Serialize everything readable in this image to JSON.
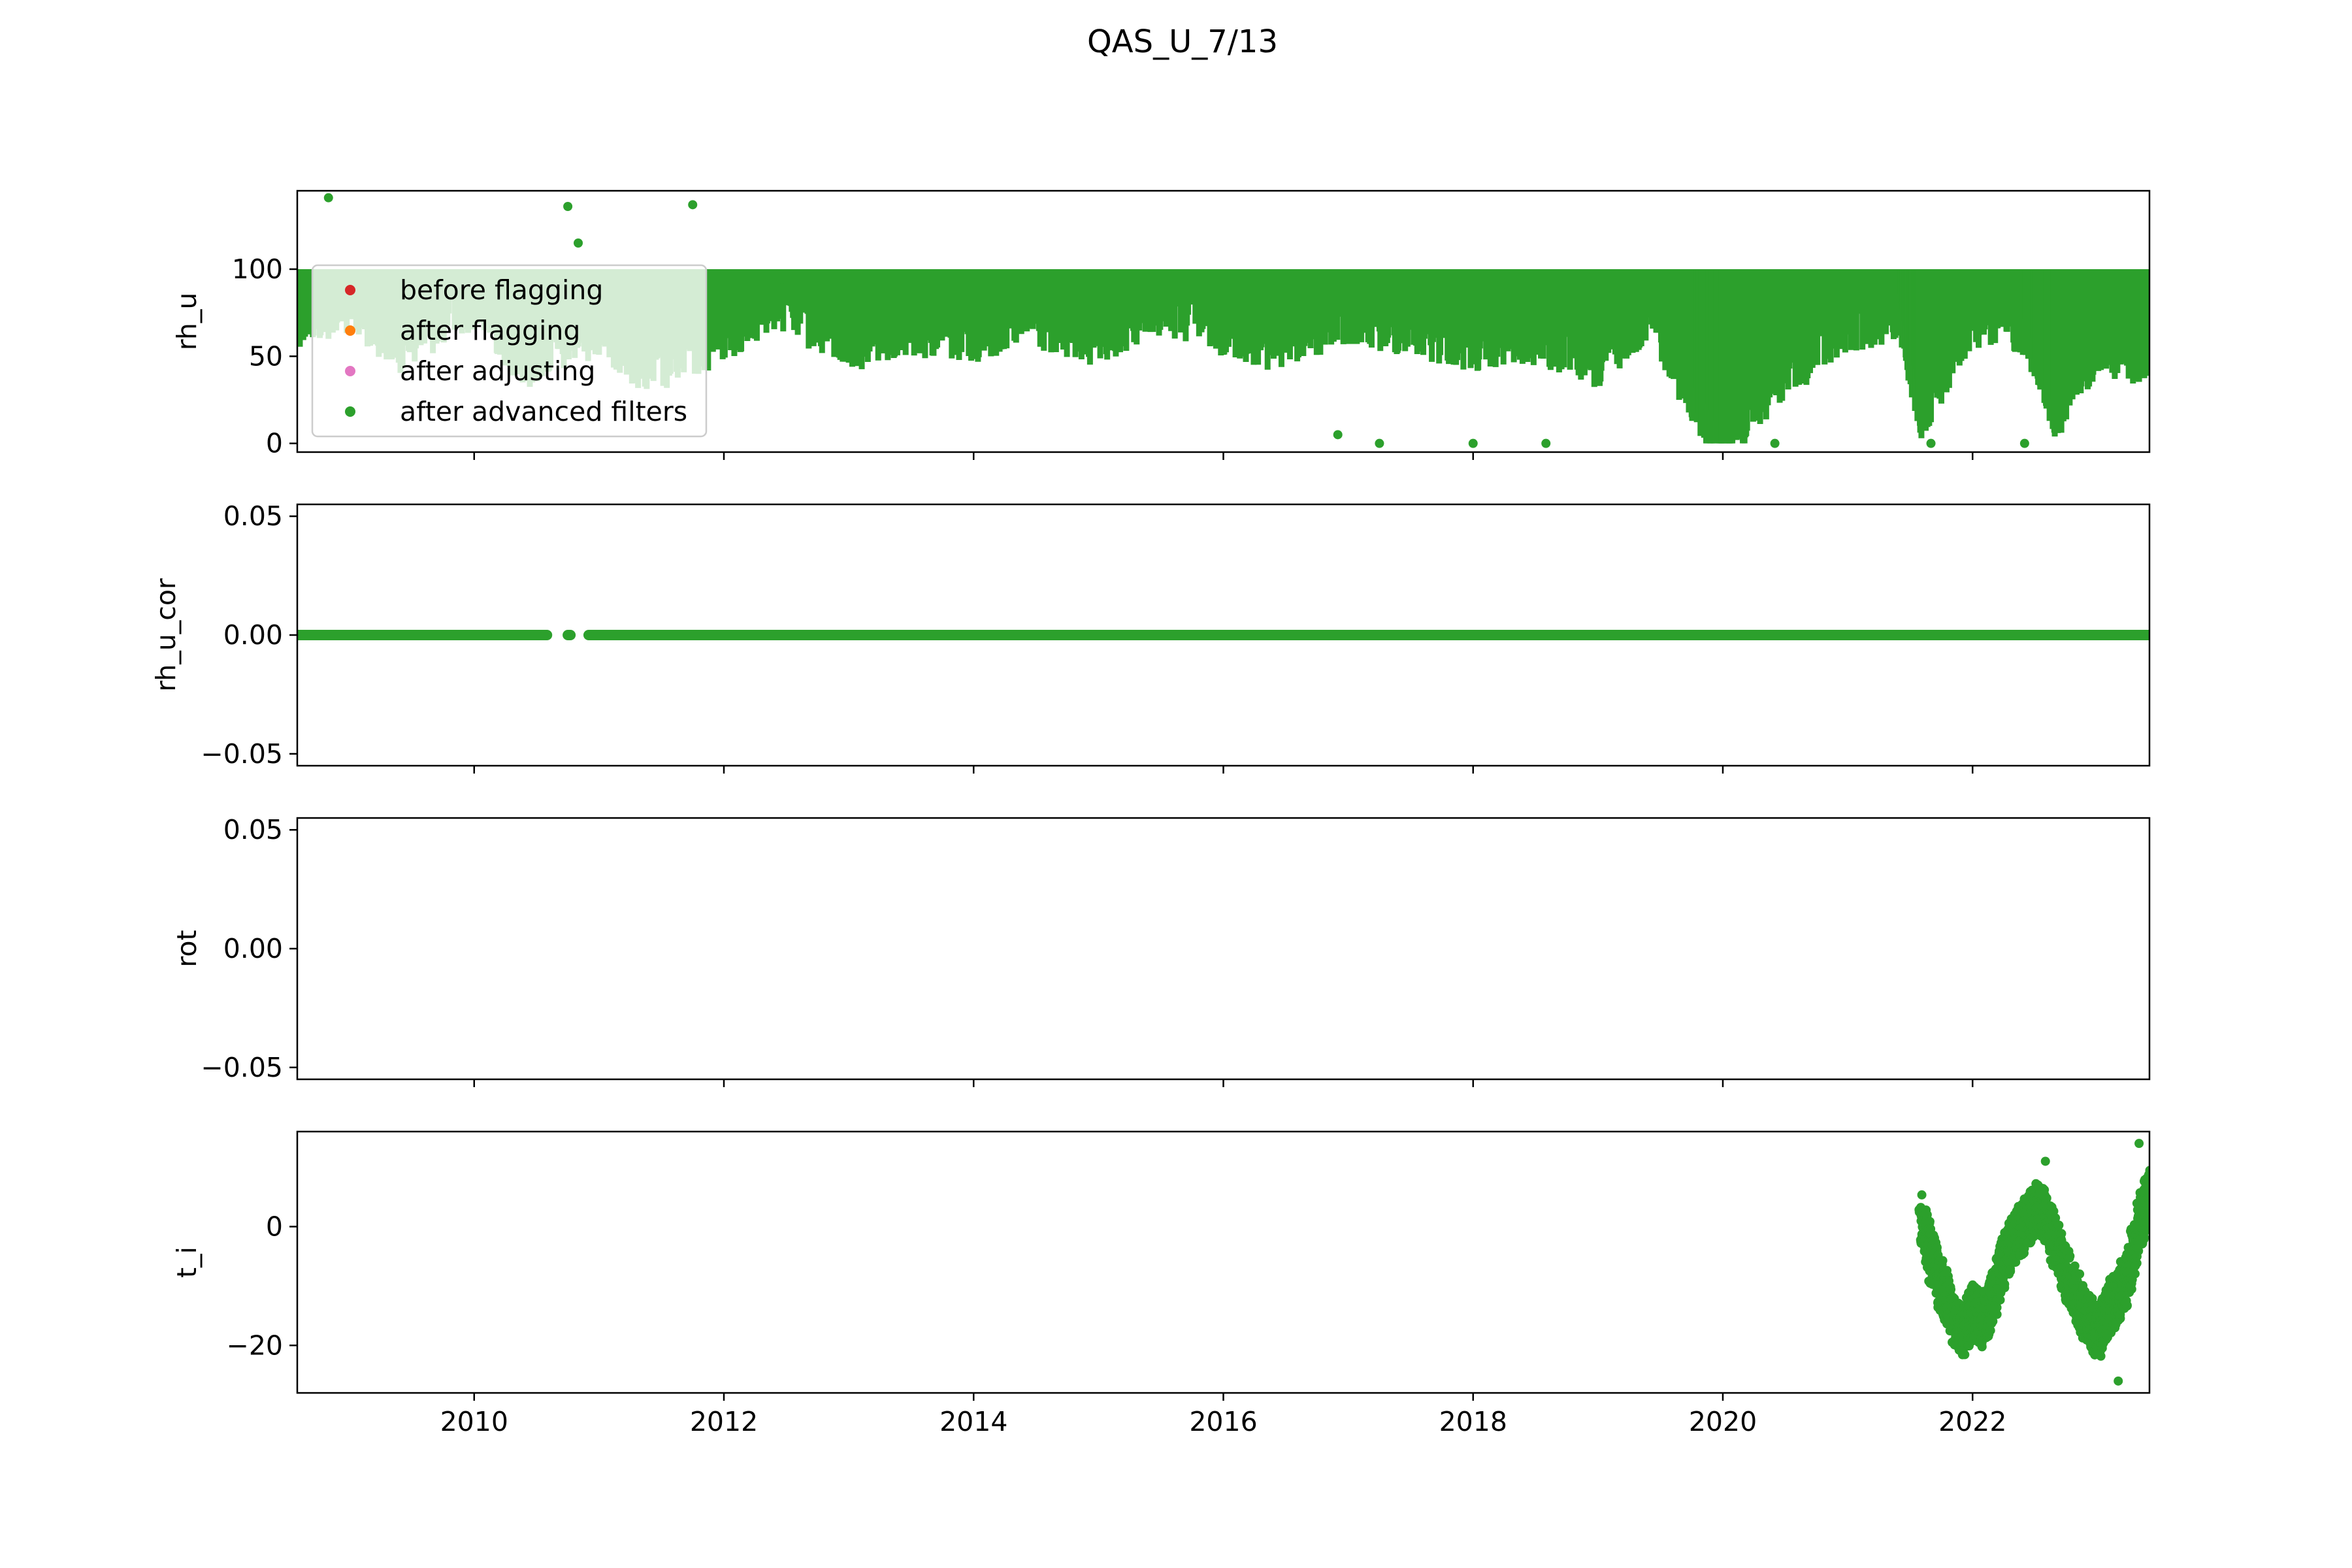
{
  "title": "QAS_U_7/13",
  "colors": {
    "before_flagging": "#d62728",
    "after_flagging": "#ff7f0e",
    "after_adjusting": "#e377c2",
    "after_advanced_filters": "#2ca02c"
  },
  "legend": {
    "placement": "upper-left of first panel",
    "entries": [
      "before flagging",
      "after flagging",
      "after adjusting",
      "after advanced filters"
    ]
  },
  "chart_data": {
    "type": "scatter",
    "title": "QAS_U_7/13",
    "x_axis": {
      "range": [
        "2008-08",
        "2023-06"
      ],
      "ticks": [
        "2010",
        "2012",
        "2014",
        "2016",
        "2018",
        "2020",
        "2022"
      ],
      "shared": true
    },
    "panels": [
      {
        "ylabel": "rh_u",
        "ylim": [
          -5,
          145
        ],
        "yticks": [
          "0",
          "50",
          "100"
        ],
        "ytick_values": [
          0,
          50,
          100
        ],
        "series": [
          {
            "name": "after advanced filters",
            "style": "dense band",
            "points": [
              [
                "2008-08",
                85
              ],
              [
                "2009-01",
                92
              ],
              [
                "2009-06",
                70
              ],
              [
                "2010-01",
                95
              ],
              [
                "2010-06",
                60
              ],
              [
                "2011-01",
                80
              ],
              [
                "2011-06",
                55
              ],
              [
                "2012-01",
                75
              ],
              [
                "2012-06",
                95
              ],
              [
                "2013-01",
                70
              ],
              [
                "2013-06",
                80
              ],
              [
                "2014-01",
                75
              ],
              [
                "2014-06",
                85
              ],
              [
                "2015-01",
                70
              ],
              [
                "2015-06",
                92
              ],
              [
                "2016-01",
                80
              ],
              [
                "2016-06",
                70
              ],
              [
                "2017-01",
                85
              ],
              [
                "2017-06",
                80
              ],
              [
                "2018-01",
                70
              ],
              [
                "2018-06",
                75
              ],
              [
                "2019-01",
                60
              ],
              [
                "2019-06",
                90
              ],
              [
                "2019-10",
                40
              ],
              [
                "2020-01",
                10
              ],
              [
                "2020-06",
                50
              ],
              [
                "2021-01",
                80
              ],
              [
                "2021-06",
                90
              ],
              [
                "2021-08",
                30
              ],
              [
                "2022-01",
                85
              ],
              [
                "2022-06",
                80
              ],
              [
                "2022-09",
                30
              ],
              [
                "2023-01",
                70
              ],
              [
                "2023-06",
                60
              ]
            ],
            "outliers": [
              [
                "2008-11",
                141
              ],
              [
                "2010-10",
                136
              ],
              [
                "2010-11",
                115
              ],
              [
                "2011-10",
                137
              ],
              [
                "2016-12",
                5
              ],
              [
                "2017-04",
                0
              ],
              [
                "2018-01",
                0
              ],
              [
                "2018-08",
                0
              ],
              [
                "2020-06",
                0
              ],
              [
                "2021-09",
                0
              ],
              [
                "2022-06",
                0
              ]
            ]
          }
        ]
      },
      {
        "ylabel": "rh_u_cor",
        "ylim": [
          -0.055,
          0.055
        ],
        "yticks": [
          "−0.05",
          "0.00",
          "0.05"
        ],
        "ytick_values": [
          -0.05,
          0,
          0.05
        ],
        "series": [
          {
            "name": "after advanced filters",
            "constant_value": 0.0,
            "x_ranges": [
              [
                "2008-08",
                "2010-08"
              ],
              [
                "2010-10",
                "2010-10"
              ],
              [
                "2010-12",
                "2023-06"
              ]
            ]
          }
        ]
      },
      {
        "ylabel": "rot",
        "ylim": [
          -0.055,
          0.055
        ],
        "yticks": [
          "−0.05",
          "0.00",
          "0.05"
        ],
        "ytick_values": [
          -0.05,
          0,
          0.05
        ],
        "series": []
      },
      {
        "ylabel": "t_i",
        "ylim": [
          -28,
          16
        ],
        "yticks": [
          "−20",
          "0"
        ],
        "ytick_values": [
          -20,
          0
        ],
        "series": [
          {
            "name": "after advanced filters",
            "points": [
              [
                "2021-08",
                2
              ],
              [
                "2021-09",
                -5
              ],
              [
                "2021-10",
                -10
              ],
              [
                "2021-11",
                -15
              ],
              [
                "2021-12",
                -18
              ],
              [
                "2022-01",
                -14
              ],
              [
                "2022-02",
                -16
              ],
              [
                "2022-03",
                -12
              ],
              [
                "2022-04",
                -6
              ],
              [
                "2022-05",
                -2
              ],
              [
                "2022-06",
                0
              ],
              [
                "2022-07",
                3
              ],
              [
                "2022-08",
                2
              ],
              [
                "2022-09",
                -3
              ],
              [
                "2022-10",
                -8
              ],
              [
                "2022-11",
                -12
              ],
              [
                "2022-12",
                -15
              ],
              [
                "2023-01",
                -18
              ],
              [
                "2023-02",
                -14
              ],
              [
                "2023-03",
                -12
              ],
              [
                "2023-04",
                -8
              ],
              [
                "2023-05",
                0
              ],
              [
                "2023-06",
                6
              ]
            ],
            "extremes": [
              [
                "2022-08",
                11
              ],
              [
                "2023-03",
                -26
              ],
              [
                "2023-05",
                14
              ]
            ]
          }
        ]
      }
    ]
  }
}
